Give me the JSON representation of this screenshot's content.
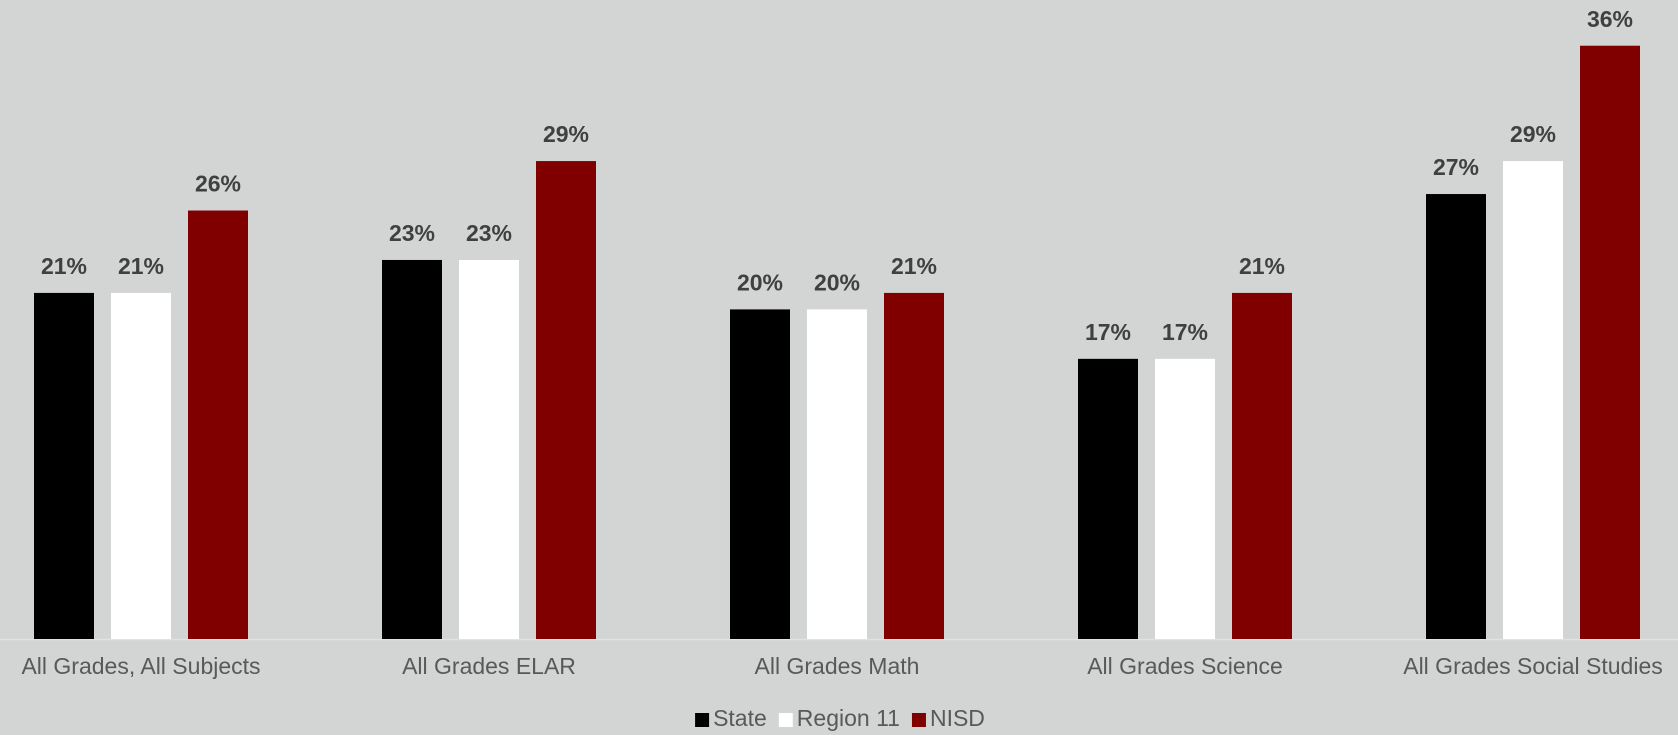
{
  "chart_data": {
    "type": "bar",
    "categories": [
      "All Grades, All Subjects",
      "All Grades ELAR",
      "All Grades Math",
      "All Grades Science",
      "All Grades Social Studies"
    ],
    "series": [
      {
        "name": "State",
        "color": "#000000",
        "values": [
          21,
          23,
          20,
          17,
          27
        ],
        "value_labels": [
          "21%",
          "23%",
          "20%",
          "17%",
          "27%"
        ]
      },
      {
        "name": "Region 11",
        "color": "#ffffff",
        "values": [
          21,
          23,
          20,
          17,
          29
        ],
        "value_labels": [
          "21%",
          "23%",
          "20%",
          "17%",
          "29%"
        ]
      },
      {
        "name": "NISD",
        "color": "#800000",
        "values": [
          26,
          29,
          21,
          21,
          36
        ],
        "value_labels": [
          "26%",
          "29%",
          "21%",
          "21%",
          "36%"
        ]
      }
    ],
    "legend": "bottom"
  }
}
